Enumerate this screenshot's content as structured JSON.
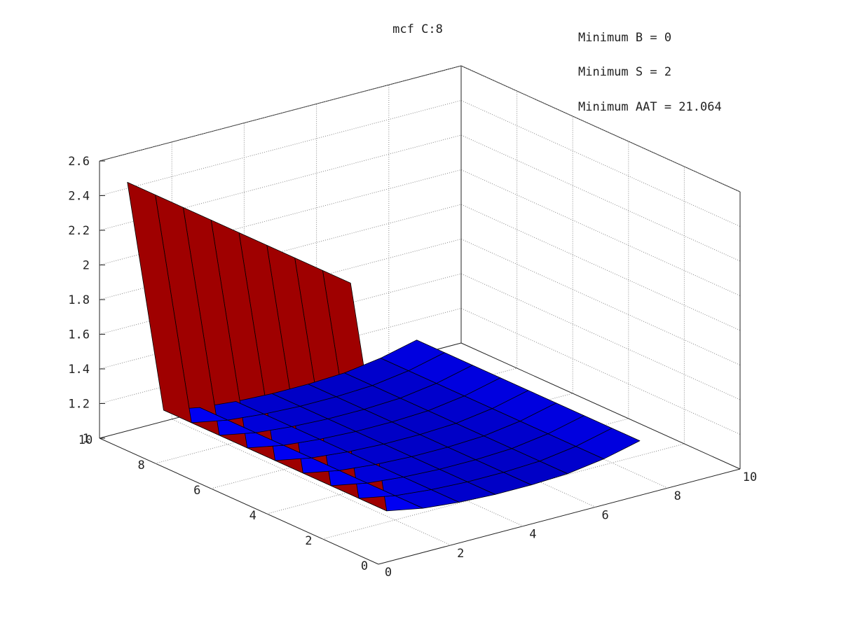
{
  "chart_data": {
    "type": "surface",
    "title": "mcf C:8",
    "xlabel": "",
    "ylabel": "",
    "zlabel": "",
    "x_ticks": [
      "0",
      "2",
      "4",
      "6",
      "8",
      "10"
    ],
    "y_ticks": [
      "0",
      "2",
      "4",
      "6",
      "8",
      "10"
    ],
    "z_ticks": [
      "1",
      "1.2",
      "1.4",
      "1.6",
      "1.8",
      "2",
      "2.2",
      "2.4",
      "2.6"
    ],
    "xlim": [
      0,
      10
    ],
    "ylim": [
      0,
      10
    ],
    "zlim": [
      1,
      2.6
    ],
    "grid": true,
    "colormap": "jet",
    "surface": {
      "x_values": [
        0,
        1,
        2,
        3,
        4,
        5,
        6,
        7,
        8
      ],
      "y_values": [
        1,
        2,
        3,
        4,
        5,
        6,
        7,
        8,
        9
      ],
      "description_rows": "row index = B (0..8), column index = S (1..9)",
      "z": [
        [
          2.55,
          1.18,
          1.14,
          1.12,
          1.11,
          1.11,
          1.12,
          1.15,
          1.2
        ],
        [
          2.55,
          1.18,
          1.14,
          1.12,
          1.11,
          1.11,
          1.12,
          1.15,
          1.2
        ],
        [
          2.55,
          1.18,
          1.14,
          1.12,
          1.11,
          1.11,
          1.12,
          1.15,
          1.2
        ],
        [
          2.55,
          1.18,
          1.14,
          1.12,
          1.11,
          1.11,
          1.12,
          1.15,
          1.2
        ],
        [
          2.55,
          1.18,
          1.14,
          1.12,
          1.11,
          1.11,
          1.12,
          1.15,
          1.2
        ],
        [
          2.55,
          1.18,
          1.14,
          1.12,
          1.11,
          1.11,
          1.12,
          1.15,
          1.2
        ],
        [
          2.55,
          1.18,
          1.14,
          1.12,
          1.11,
          1.11,
          1.12,
          1.15,
          1.2
        ],
        [
          2.55,
          1.18,
          1.14,
          1.12,
          1.11,
          1.11,
          1.12,
          1.15,
          1.2
        ],
        [
          2.55,
          1.18,
          1.14,
          1.12,
          1.11,
          1.11,
          1.12,
          1.15,
          1.2
        ]
      ]
    },
    "annotations": [
      "Minimum B = 0",
      "Minimum S = 2",
      "Minimum AAT = 21.064"
    ],
    "colors": {
      "top": "#800000",
      "surface_low": "#00008f",
      "surface_mid": "#0000ff",
      "surface_high": "#0066ff"
    }
  }
}
